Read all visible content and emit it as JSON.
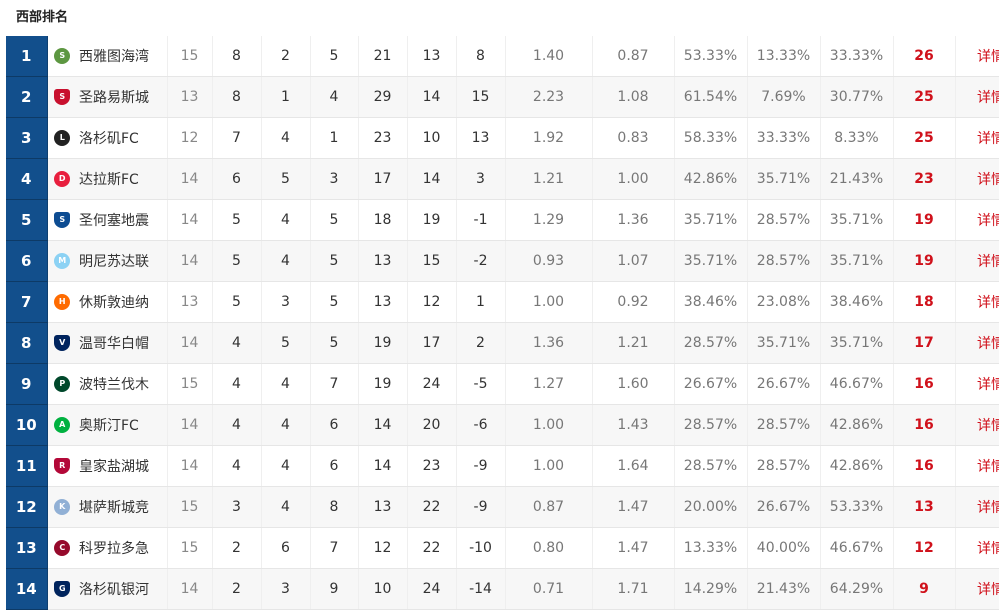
{
  "section_title": "西部排名",
  "details_label": "详情",
  "rows": [
    {
      "rank": "1",
      "team": "西雅图海湾",
      "crest": "seattle-crest-icon",
      "crest_color": "#5d9741",
      "crest_glyph": "S",
      "played": "15",
      "won": "8",
      "drawn": "2",
      "lost": "5",
      "gf": "21",
      "ga": "13",
      "gd": "8",
      "avg_gf": "1.40",
      "avg_ga": "0.87",
      "win_pct": "53.33%",
      "draw_pct": "13.33%",
      "loss_pct": "33.33%",
      "pts": "26"
    },
    {
      "rank": "2",
      "team": "圣路易斯城",
      "crest": "st-louis-crest-icon",
      "crest_color": "#c8102e",
      "crest_glyph": "S",
      "played": "13",
      "won": "8",
      "drawn": "1",
      "lost": "4",
      "gf": "29",
      "ga": "14",
      "gd": "15",
      "avg_gf": "2.23",
      "avg_ga": "1.08",
      "win_pct": "61.54%",
      "draw_pct": "7.69%",
      "loss_pct": "30.77%",
      "pts": "25"
    },
    {
      "rank": "3",
      "team": "洛杉矶FC",
      "crest": "lafc-crest-icon",
      "crest_color": "#222222",
      "crest_glyph": "L",
      "played": "12",
      "won": "7",
      "drawn": "4",
      "lost": "1",
      "gf": "23",
      "ga": "10",
      "gd": "13",
      "avg_gf": "1.92",
      "avg_ga": "0.83",
      "win_pct": "58.33%",
      "draw_pct": "33.33%",
      "loss_pct": "8.33%",
      "pts": "25"
    },
    {
      "rank": "4",
      "team": "达拉斯FC",
      "crest": "dallas-crest-icon",
      "crest_color": "#e81f3e",
      "crest_glyph": "D",
      "played": "14",
      "won": "6",
      "drawn": "5",
      "lost": "3",
      "gf": "17",
      "ga": "14",
      "gd": "3",
      "avg_gf": "1.21",
      "avg_ga": "1.00",
      "win_pct": "42.86%",
      "draw_pct": "35.71%",
      "loss_pct": "21.43%",
      "pts": "23"
    },
    {
      "rank": "5",
      "team": "圣何塞地震",
      "crest": "san-jose-crest-icon",
      "crest_color": "#0d4c92",
      "crest_glyph": "S",
      "played": "14",
      "won": "5",
      "drawn": "4",
      "lost": "5",
      "gf": "18",
      "ga": "19",
      "gd": "-1",
      "avg_gf": "1.29",
      "avg_ga": "1.36",
      "win_pct": "35.71%",
      "draw_pct": "28.57%",
      "loss_pct": "35.71%",
      "pts": "19"
    },
    {
      "rank": "6",
      "team": "明尼苏达联",
      "crest": "minnesota-crest-icon",
      "crest_color": "#8cd2f4",
      "crest_glyph": "M",
      "played": "14",
      "won": "5",
      "drawn": "4",
      "lost": "5",
      "gf": "13",
      "ga": "15",
      "gd": "-2",
      "avg_gf": "0.93",
      "avg_ga": "1.07",
      "win_pct": "35.71%",
      "draw_pct": "28.57%",
      "loss_pct": "35.71%",
      "pts": "19"
    },
    {
      "rank": "7",
      "team": "休斯敦迪纳",
      "crest": "houston-crest-icon",
      "crest_color": "#ff6b00",
      "crest_glyph": "H",
      "played": "13",
      "won": "5",
      "drawn": "3",
      "lost": "5",
      "gf": "13",
      "ga": "12",
      "gd": "1",
      "avg_gf": "1.00",
      "avg_ga": "0.92",
      "win_pct": "38.46%",
      "draw_pct": "23.08%",
      "loss_pct": "38.46%",
      "pts": "18"
    },
    {
      "rank": "8",
      "team": "温哥华白帽",
      "crest": "vancouver-crest-icon",
      "crest_color": "#00245e",
      "crest_glyph": "V",
      "played": "14",
      "won": "4",
      "drawn": "5",
      "lost": "5",
      "gf": "19",
      "ga": "17",
      "gd": "2",
      "avg_gf": "1.36",
      "avg_ga": "1.21",
      "win_pct": "28.57%",
      "draw_pct": "35.71%",
      "loss_pct": "35.71%",
      "pts": "17"
    },
    {
      "rank": "9",
      "team": "波特兰伐木",
      "crest": "portland-crest-icon",
      "crest_color": "#00482b",
      "crest_glyph": "P",
      "played": "15",
      "won": "4",
      "drawn": "4",
      "lost": "7",
      "gf": "19",
      "ga": "24",
      "gd": "-5",
      "avg_gf": "1.27",
      "avg_ga": "1.60",
      "win_pct": "26.67%",
      "draw_pct": "26.67%",
      "loss_pct": "46.67%",
      "pts": "16"
    },
    {
      "rank": "10",
      "team": "奥斯汀FC",
      "crest": "austin-crest-icon",
      "crest_color": "#00b140",
      "crest_glyph": "A",
      "played": "14",
      "won": "4",
      "drawn": "4",
      "lost": "6",
      "gf": "14",
      "ga": "20",
      "gd": "-6",
      "avg_gf": "1.00",
      "avg_ga": "1.43",
      "win_pct": "28.57%",
      "draw_pct": "28.57%",
      "loss_pct": "42.86%",
      "pts": "16"
    },
    {
      "rank": "11",
      "team": "皇家盐湖城",
      "crest": "real-salt-lake-crest-icon",
      "crest_color": "#b30838",
      "crest_glyph": "R",
      "played": "14",
      "won": "4",
      "drawn": "4",
      "lost": "6",
      "gf": "14",
      "ga": "23",
      "gd": "-9",
      "avg_gf": "1.00",
      "avg_ga": "1.64",
      "win_pct": "28.57%",
      "draw_pct": "28.57%",
      "loss_pct": "42.86%",
      "pts": "16"
    },
    {
      "rank": "12",
      "team": "堪萨斯城竞",
      "crest": "kansas-city-crest-icon",
      "crest_color": "#91b0d5",
      "crest_glyph": "K",
      "played": "15",
      "won": "3",
      "drawn": "4",
      "lost": "8",
      "gf": "13",
      "ga": "22",
      "gd": "-9",
      "avg_gf": "0.87",
      "avg_ga": "1.47",
      "win_pct": "20.00%",
      "draw_pct": "26.67%",
      "loss_pct": "53.33%",
      "pts": "13"
    },
    {
      "rank": "13",
      "team": "科罗拉多急",
      "crest": "colorado-crest-icon",
      "crest_color": "#960a2c",
      "crest_glyph": "C",
      "played": "15",
      "won": "2",
      "drawn": "6",
      "lost": "7",
      "gf": "12",
      "ga": "22",
      "gd": "-10",
      "avg_gf": "0.80",
      "avg_ga": "1.47",
      "win_pct": "13.33%",
      "draw_pct": "40.00%",
      "loss_pct": "46.67%",
      "pts": "12"
    },
    {
      "rank": "14",
      "team": "洛杉矶银河",
      "crest": "la-galaxy-crest-icon",
      "crest_color": "#00245d",
      "crest_glyph": "G",
      "played": "14",
      "won": "2",
      "drawn": "3",
      "lost": "9",
      "gf": "10",
      "ga": "24",
      "gd": "-14",
      "avg_gf": "0.71",
      "avg_ga": "1.71",
      "win_pct": "14.29%",
      "draw_pct": "21.43%",
      "loss_pct": "64.29%",
      "pts": "9"
    }
  ]
}
